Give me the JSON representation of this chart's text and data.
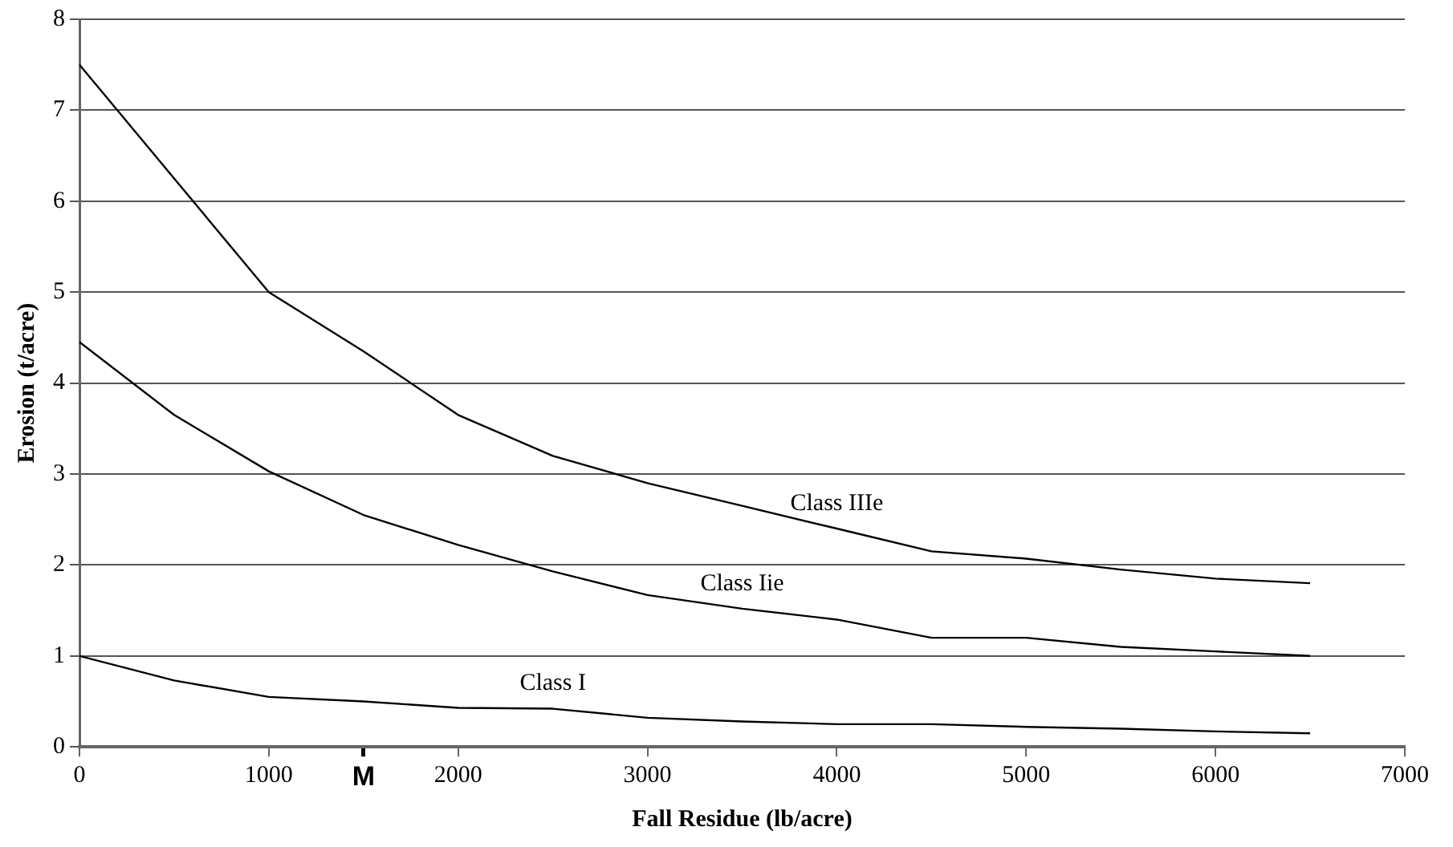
{
  "chart_data": {
    "type": "line",
    "xlabel": "Fall Residue (lb/acre)",
    "ylabel": "Erosion (t/acre)",
    "x": [
      0,
      500,
      1000,
      1500,
      2000,
      2500,
      3000,
      3500,
      4000,
      4500,
      5000,
      5500,
      6000,
      6500
    ],
    "series": [
      {
        "name": "Class IIIe",
        "color": "#000000",
        "values": [
          7.5,
          6.25,
          5.0,
          4.35,
          3.65,
          3.2,
          2.9,
          2.65,
          2.4,
          2.15,
          2.07,
          1.95,
          1.85,
          1.8
        ]
      },
      {
        "name": "Class Iie",
        "color": "#000000",
        "values": [
          4.45,
          3.65,
          3.03,
          2.55,
          2.22,
          1.93,
          1.67,
          1.52,
          1.4,
          1.2,
          1.2,
          1.1,
          1.05,
          1.0
        ]
      },
      {
        "name": "Class I",
        "color": "#000000",
        "values": [
          1.0,
          0.73,
          0.55,
          0.5,
          0.43,
          0.42,
          0.32,
          0.28,
          0.25,
          0.25,
          0.22,
          0.2,
          0.17,
          0.15
        ]
      }
    ],
    "xlim": [
      0,
      7000
    ],
    "xticks": [
      0,
      1000,
      {
        "value": 1500,
        "label": "M"
      },
      2000,
      3000,
      4000,
      5000,
      6000,
      7000
    ],
    "ylim": [
      0,
      8
    ],
    "yticks": [
      0,
      1,
      2,
      3,
      4,
      5,
      6,
      7,
      8
    ],
    "grid": "y",
    "legend": false,
    "marker": "none",
    "line_style": "solid"
  }
}
